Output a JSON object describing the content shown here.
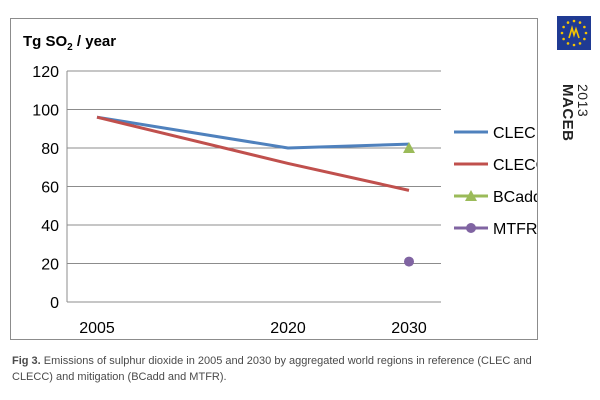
{
  "chart_data": {
    "type": "line",
    "title": "Tg SO2 / year",
    "title_parts": {
      "before_sub": "Tg SO",
      "sub": "2",
      "after_sub": " / year"
    },
    "x": [
      2005,
      2020,
      2030
    ],
    "xticks": [
      "2005",
      "2020",
      "2030"
    ],
    "ylim": [
      0,
      120
    ],
    "yticks": [
      0,
      20,
      40,
      60,
      80,
      100,
      120
    ],
    "grid": true,
    "legend_position": "right",
    "series": [
      {
        "name": "CLEC",
        "type": "line",
        "color": "#4f81bd",
        "points": [
          [
            2005,
            96
          ],
          [
            2020,
            80
          ],
          [
            2030,
            82
          ]
        ]
      },
      {
        "name": "CLECC",
        "type": "line",
        "color": "#c0504d",
        "points": [
          [
            2005,
            96
          ],
          [
            2020,
            72
          ],
          [
            2030,
            58
          ]
        ]
      },
      {
        "name": "BCadd",
        "type": "marker",
        "marker": "triangle",
        "color": "#9bbb59",
        "points": [
          [
            2030,
            80
          ]
        ]
      },
      {
        "name": "MTFR",
        "type": "marker",
        "marker": "circle",
        "color": "#8064a2",
        "points": [
          [
            2030,
            21
          ]
        ]
      }
    ]
  },
  "logo": {
    "name": "MACEB",
    "year": "2013",
    "flag_color": "#1f3a93",
    "star_color": "#f5c400",
    "icon": "eu-flag-icon"
  },
  "caption": {
    "label": "Fig 3.",
    "text": " Emissions of sulphur dioxide in 2005 and 2030 by aggregated world regions in reference (CLEC and CLECC) and mitigation (BCadd and MTFR)."
  }
}
